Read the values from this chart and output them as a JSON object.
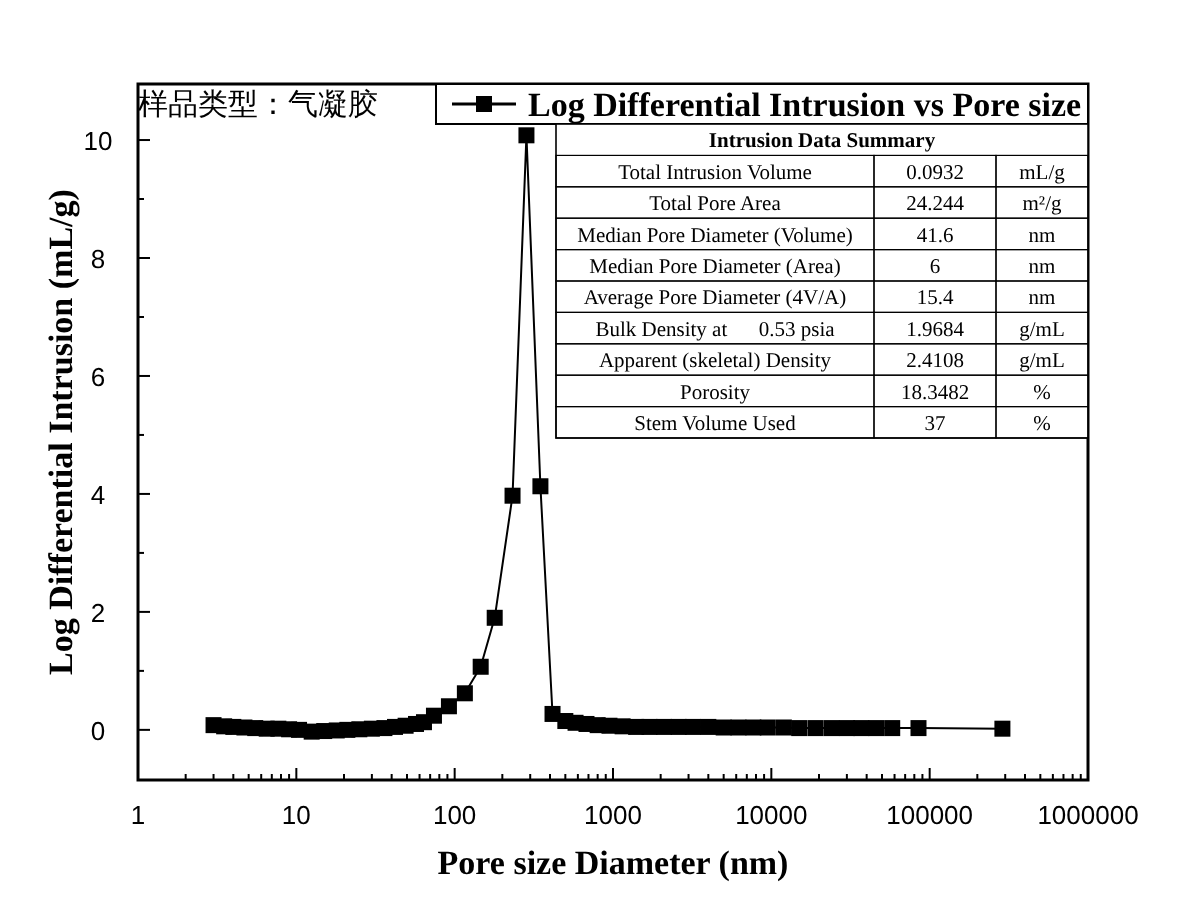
{
  "chart_data": {
    "type": "line",
    "title": "样品类型：气凝胶",
    "xlabel": "Pore size Diameter (nm)",
    "ylabel": "Log Differential Intrusion (mL/g)",
    "log": "x",
    "xlim": [
      1,
      1000000
    ],
    "ylim": [
      -0.85,
      10.95
    ],
    "xticks": [
      1,
      10,
      100,
      1000,
      10000,
      100000,
      1000000,
      {
        "value": 2,
        "label": null
      },
      {
        "value": 3,
        "label": null
      },
      {
        "value": 4,
        "label": null
      },
      {
        "value": 5,
        "label": null
      },
      {
        "value": 6,
        "label": null
      },
      {
        "value": 7,
        "label": null
      },
      {
        "value": 8,
        "label": null
      },
      {
        "value": 9,
        "label": null
      },
      {
        "value": 20,
        "label": null
      },
      {
        "value": 30,
        "label": null
      },
      {
        "value": 40,
        "label": null
      },
      {
        "value": 50,
        "label": null
      },
      {
        "value": 60,
        "label": null
      },
      {
        "value": 70,
        "label": null
      },
      {
        "value": 80,
        "label": null
      },
      {
        "value": 90,
        "label": null
      },
      {
        "value": 200,
        "label": null
      },
      {
        "value": 300,
        "label": null
      },
      {
        "value": 400,
        "label": null
      },
      {
        "value": 500,
        "label": null
      },
      {
        "value": 600,
        "label": null
      },
      {
        "value": 700,
        "label": null
      },
      {
        "value": 800,
        "label": null
      },
      {
        "value": 900,
        "label": null
      },
      {
        "value": 2000,
        "label": null
      },
      {
        "value": 3000,
        "label": null
      },
      {
        "value": 4000,
        "label": null
      },
      {
        "value": 5000,
        "label": null
      },
      {
        "value": 6000,
        "label": null
      },
      {
        "value": 7000,
        "label": null
      },
      {
        "value": 8000,
        "label": null
      },
      {
        "value": 9000,
        "label": null
      },
      {
        "value": 20000,
        "label": null
      },
      {
        "value": 30000,
        "label": null
      },
      {
        "value": 40000,
        "label": null
      },
      {
        "value": 50000,
        "label": null
      },
      {
        "value": 60000,
        "label": null
      },
      {
        "value": 70000,
        "label": null
      },
      {
        "value": 80000,
        "label": null
      },
      {
        "value": 90000,
        "label": null
      },
      {
        "value": 200000,
        "label": null
      },
      {
        "value": 300000,
        "label": null
      },
      {
        "value": 400000,
        "label": null
      },
      {
        "value": 500000,
        "label": null
      },
      {
        "value": 600000,
        "label": null
      },
      {
        "value": 700000,
        "label": null
      },
      {
        "value": 800000,
        "label": null
      },
      {
        "value": 900000,
        "label": null
      }
    ],
    "yticks": [
      0,
      2,
      4,
      6,
      8,
      10,
      {
        "value": 1,
        "label": null
      },
      {
        "value": 3,
        "label": null
      },
      {
        "value": 5,
        "label": null
      },
      {
        "value": 7,
        "label": null
      },
      {
        "value": 9,
        "label": null
      }
    ],
    "grid": false,
    "legend": "top right",
    "marker": "square",
    "line_style": "solid",
    "series": [
      {
        "name": "Log Differential Intrusion vs Pore size",
        "color": "#000000",
        "x": [
          3,
          3.5,
          4,
          4.7,
          5.5,
          6.5,
          7.7,
          9,
          10.4,
          12.5,
          15,
          18,
          21,
          25,
          30,
          36,
          42,
          49,
          57,
          64,
          74,
          92,
          116,
          146,
          179,
          232,
          284,
          348,
          415,
          500,
          580,
          680,
          800,
          950,
          1150,
          1400,
          1700,
          2100,
          2600,
          3200,
          4000,
          5000,
          6200,
          7700,
          9500,
          12000,
          15000,
          19000,
          24000,
          30000,
          37000,
          46000,
          58000,
          85000,
          288000
        ],
        "values": [
          0.08,
          0.06,
          0.05,
          0.04,
          0.03,
          0.02,
          0.02,
          0.01,
          0.0,
          -0.03,
          -0.02,
          -0.01,
          0.0,
          0.01,
          0.02,
          0.03,
          0.05,
          0.07,
          0.1,
          0.13,
          0.24,
          0.4,
          0.62,
          1.07,
          1.9,
          3.97,
          10.08,
          4.13,
          0.27,
          0.15,
          0.12,
          0.1,
          0.08,
          0.07,
          0.06,
          0.05,
          0.05,
          0.05,
          0.05,
          0.05,
          0.05,
          0.04,
          0.04,
          0.04,
          0.04,
          0.04,
          0.03,
          0.03,
          0.03,
          0.03,
          0.03,
          0.03,
          0.03,
          0.03,
          0.02
        ]
      }
    ],
    "annotations": [
      "Intrusion Data Summary",
      "Total Intrusion Volume",
      "0.0932",
      "mL/g",
      "Total Pore Area",
      "24.244",
      "m²/g",
      "Median Pore Diameter (Volume)",
      "41.6",
      "nm",
      "Median Pore Diameter (Area)",
      "6",
      "nm",
      "Average Pore Diameter (4V/A)",
      "15.4",
      "nm",
      "Bulk Density at      0.53 psia",
      "1.9684",
      "g/mL",
      "Apparent (skeletal) Density",
      "2.4108",
      "g/mL",
      "Porosity",
      "18.3482",
      "%",
      "Stem Volume Used",
      "37",
      "%"
    ]
  }
}
